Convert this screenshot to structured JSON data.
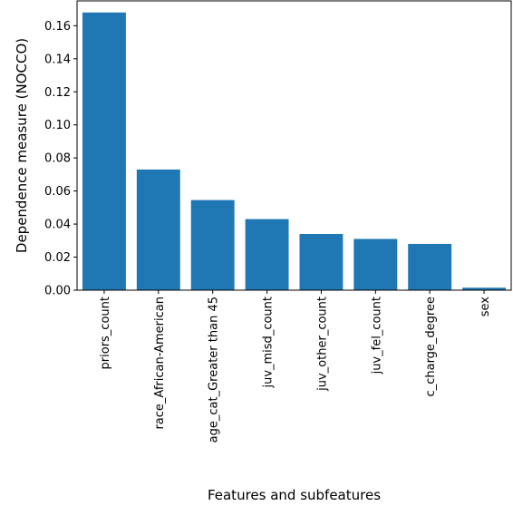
{
  "chart_data": {
    "type": "bar",
    "title": "",
    "xlabel": "Features and subfeatures",
    "ylabel": "Dependence measure (NOCCO)",
    "categories": [
      "priors_count",
      "race_African-American",
      "age_cat_Greater than 45",
      "juv_misd_count",
      "juv_other_count",
      "juv_fel_count",
      "c_charge_degree",
      "sex"
    ],
    "values": [
      0.168,
      0.073,
      0.0545,
      0.043,
      0.034,
      0.031,
      0.028,
      0.0015
    ],
    "ylim": [
      0,
      0.175
    ],
    "yticks": [
      0.0,
      0.02,
      0.04,
      0.06,
      0.08,
      0.1,
      0.12,
      0.14,
      0.16
    ],
    "ytick_labels": [
      "0.00",
      "0.02",
      "0.04",
      "0.06",
      "0.08",
      "0.10",
      "0.12",
      "0.14",
      "0.16"
    ],
    "grid": false,
    "colors": {
      "bar": "#1f77b4",
      "axis": "#000000"
    }
  }
}
